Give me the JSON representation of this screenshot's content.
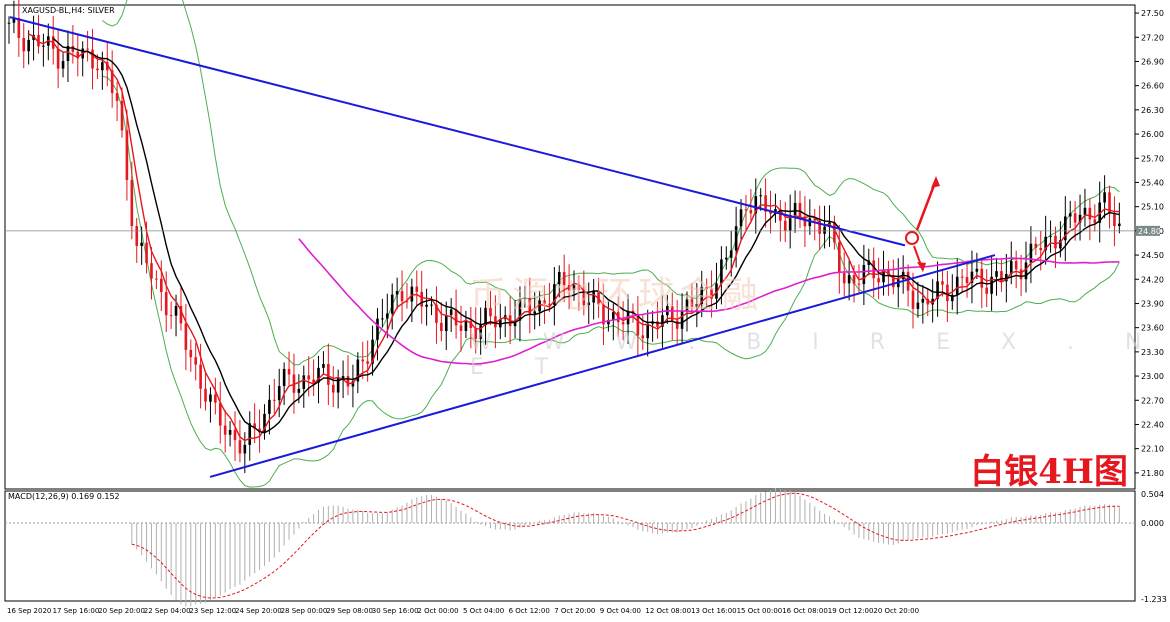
{
  "header": {
    "symbol": "XAGUSD-BL,H4:  SILVER"
  },
  "watermark": {
    "cn": "币源地环球金融",
    "url": "W W W . B I R E X . N E T"
  },
  "annotation": {
    "title": "白银4H图"
  },
  "macd": {
    "label": "MACD(12,26,9) 0.169 0.152",
    "axis": [
      "0.504",
      "0.000",
      "-1.233"
    ]
  },
  "chart_data": {
    "type": "candlestick",
    "price_axis": [
      "27.50",
      "27.20",
      "26.90",
      "26.60",
      "26.30",
      "26.00",
      "25.70",
      "25.40",
      "25.10",
      "24.80",
      "24.50",
      "24.20",
      "23.90",
      "23.60",
      "23.30",
      "23.00",
      "22.70",
      "22.40",
      "22.10",
      "21.80"
    ],
    "current_price": "24.80",
    "ylim": [
      21.6,
      27.6
    ],
    "x_labels": [
      "16 Sep 2020",
      "17 Sep 16:00",
      "20 Sep 20:00",
      "22 Sep 04:00",
      "23 Sep 12:00",
      "24 Sep 20:00",
      "28 Sep 00:00",
      "29 Sep 08:00",
      "30 Sep 16:00",
      "2 Oct 00:00",
      "5 Oct 04:00",
      "6 Oct 12:00",
      "7 Oct 20:00",
      "9 Oct 04:00",
      "12 Oct 08:00",
      "13 Oct 16:00",
      "15 Oct 00:00",
      "16 Oct 08:00",
      "19 Oct 12:00",
      "20 Oct 20:00"
    ],
    "trend_lines": [
      {
        "name": "upper",
        "from": [
          0,
          27.45
        ],
        "to": [
          205,
          24.62
        ]
      },
      {
        "name": "lower",
        "from": [
          48,
          21.75
        ],
        "to": [
          226,
          24.5
        ]
      }
    ],
    "colors": {
      "up": "#000000",
      "down": "#e6171e",
      "trend": "#1a1adc",
      "ma_fast": "#e6171e",
      "ma_slow": "#000000",
      "ma_long": "#e020d0",
      "bands": "#4caf50",
      "signal": "#e6171e",
      "arrow": "#e6171e"
    }
  }
}
